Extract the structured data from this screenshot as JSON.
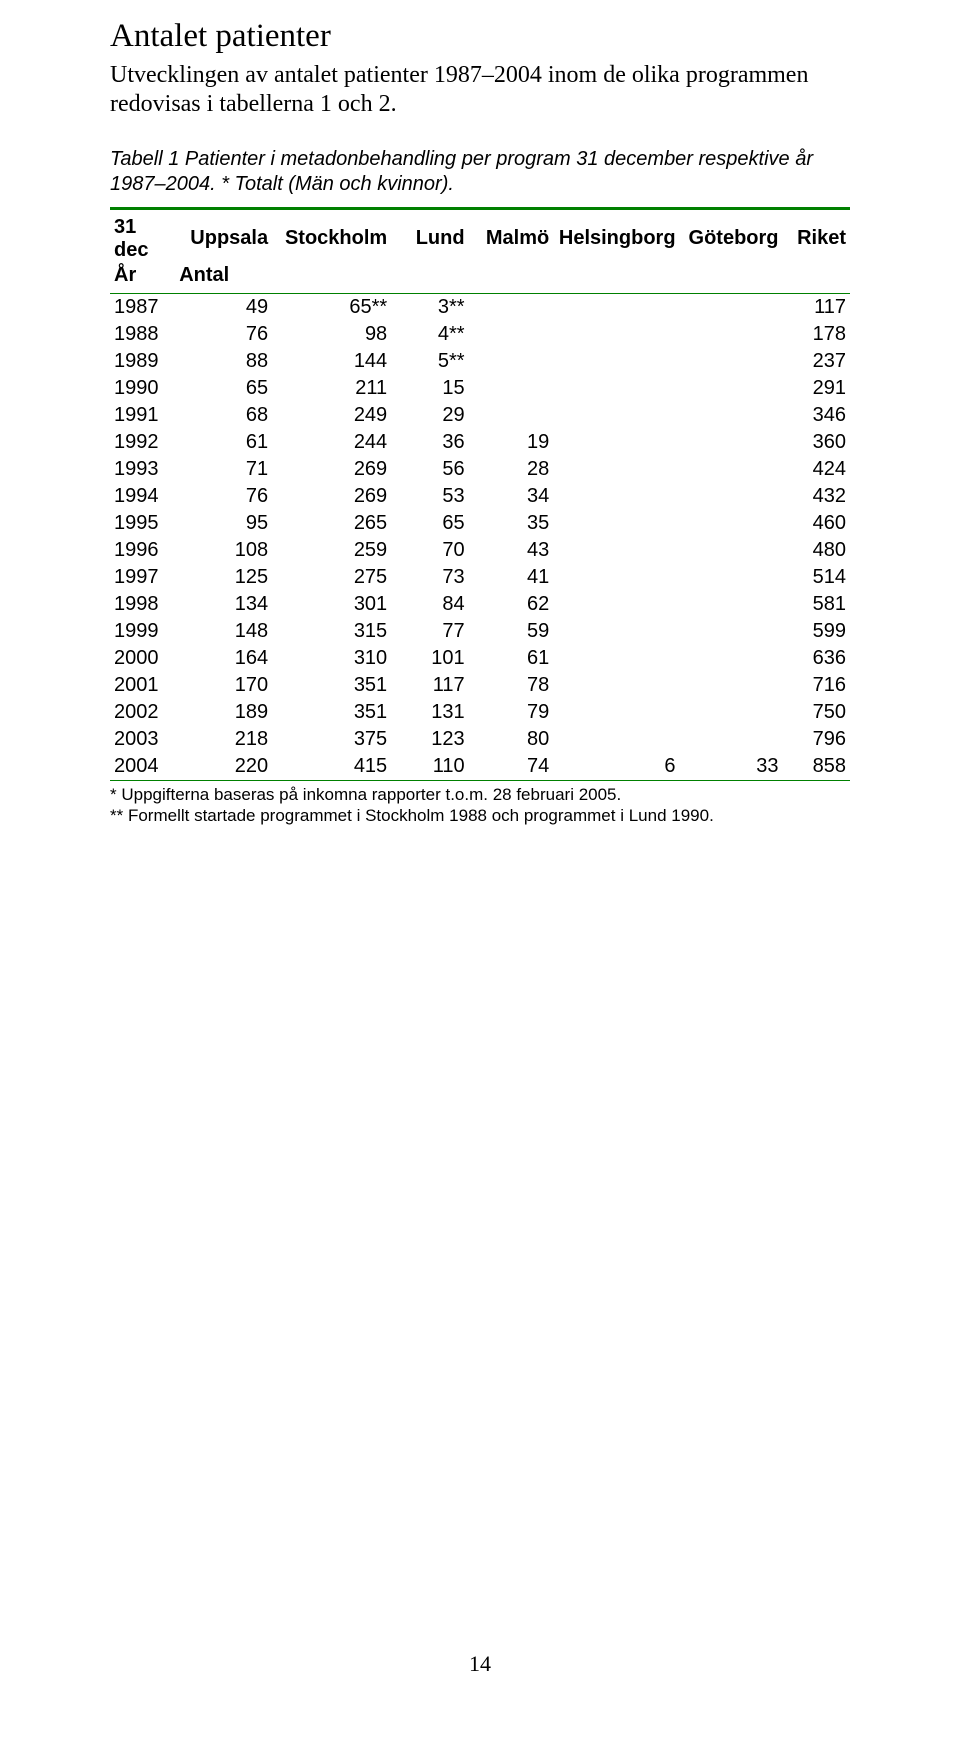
{
  "title": "Antalet patienter",
  "intro": "Utvecklingen av antalet patienter 1987–2004 inom de olika programmen redovisas i tabellerna 1 och 2.",
  "caption": "Tabell 1 Patienter i metadonbehandling per program 31 december respektive år 1987–2004. * Totalt (Män och kvinnor).",
  "table": {
    "rule_color": "#008000",
    "header_row1": [
      "31 dec",
      "Uppsala",
      "Stockholm",
      "Lund",
      "Malmö",
      "Helsingborg",
      "Göteborg",
      "Riket"
    ],
    "header_row2": [
      "År",
      "Antal",
      "",
      "",
      "",
      "",
      "",
      ""
    ],
    "rows": [
      [
        "1987",
        "49",
        "65**",
        "3**",
        "",
        "",
        "",
        "117"
      ],
      [
        "1988",
        "76",
        "98",
        "4**",
        "",
        "",
        "",
        "178"
      ],
      [
        "1989",
        "88",
        "144",
        "5**",
        "",
        "",
        "",
        "237"
      ],
      [
        "1990",
        "65",
        "211",
        "15",
        "",
        "",
        "",
        "291"
      ],
      [
        "1991",
        "68",
        "249",
        "29",
        "",
        "",
        "",
        "346"
      ],
      [
        "1992",
        "61",
        "244",
        "36",
        "19",
        "",
        "",
        "360"
      ],
      [
        "1993",
        "71",
        "269",
        "56",
        "28",
        "",
        "",
        "424"
      ],
      [
        "1994",
        "76",
        "269",
        "53",
        "34",
        "",
        "",
        "432"
      ],
      [
        "1995",
        "95",
        "265",
        "65",
        "35",
        "",
        "",
        "460"
      ],
      [
        "1996",
        "108",
        "259",
        "70",
        "43",
        "",
        "",
        "480"
      ],
      [
        "1997",
        "125",
        "275",
        "73",
        "41",
        "",
        "",
        "514"
      ],
      [
        "1998",
        "134",
        "301",
        "84",
        "62",
        "",
        "",
        "581"
      ],
      [
        "1999",
        "148",
        "315",
        "77",
        "59",
        "",
        "",
        "599"
      ],
      [
        "2000",
        "164",
        "310",
        "101",
        "61",
        "",
        "",
        "636"
      ],
      [
        "2001",
        "170",
        "351",
        "117",
        "78",
        "",
        "",
        "716"
      ],
      [
        "2002",
        "189",
        "351",
        "131",
        "79",
        "",
        "",
        "750"
      ],
      [
        "2003",
        "218",
        "375",
        "123",
        "80",
        "",
        "",
        "796"
      ],
      [
        "2004",
        "220",
        "415",
        "110",
        "74",
        "6",
        "33",
        "858"
      ]
    ]
  },
  "footnote1": "* Uppgifterna baseras på inkomna rapporter t.o.m. 28 februari 2005.",
  "footnote2": "** Formellt startade programmet i Stockholm 1988 och programmet i Lund 1990.",
  "page_number": "14"
}
